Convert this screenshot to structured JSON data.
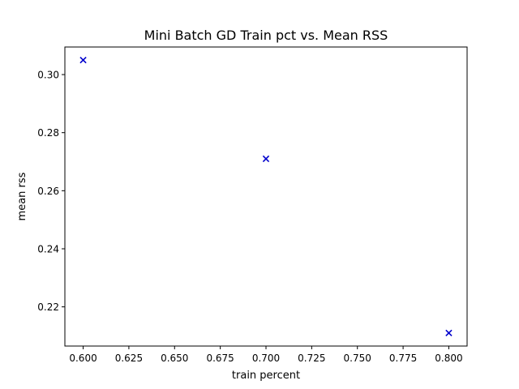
{
  "chart_data": {
    "type": "scatter",
    "title": "Mini Batch GD Train pct vs. Mean RSS",
    "xlabel": "train percent",
    "ylabel": "mean rss",
    "xlim": [
      0.59,
      0.81
    ],
    "ylim": [
      0.2065,
      0.3095
    ],
    "xticks": [
      0.6,
      0.625,
      0.65,
      0.675,
      0.7,
      0.725,
      0.75,
      0.775,
      0.8
    ],
    "xtick_labels": [
      "0.600",
      "0.625",
      "0.650",
      "0.675",
      "0.700",
      "0.725",
      "0.750",
      "0.775",
      "0.800"
    ],
    "yticks": [
      0.22,
      0.24,
      0.26,
      0.28,
      0.3
    ],
    "ytick_labels": [
      "0.22",
      "0.24",
      "0.26",
      "0.28",
      "0.30"
    ],
    "grid": false,
    "marker": "x",
    "series": [
      {
        "color": "#0000cc",
        "x": [
          0.6,
          0.7,
          0.8
        ],
        "y": [
          0.305,
          0.271,
          0.211
        ]
      }
    ]
  }
}
